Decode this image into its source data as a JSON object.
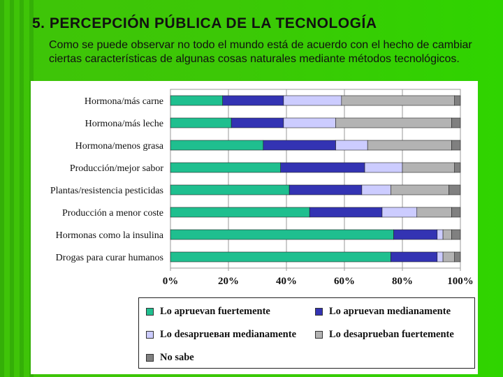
{
  "slide": {
    "title": "5. PERCEPCIÓN PÚBLICA DE LA TECNOLOGÍA",
    "subtitle": "Como se puede observar no todo el mundo está de acuerdo con el hecho de cambiar ciertas características de algunas cosas naturales mediante métodos tecnológicos."
  },
  "chart_data": {
    "type": "bar",
    "orientation": "horizontal",
    "stacked": "percent",
    "categories": [
      "Hormona/más carne",
      "Hormona/más leche",
      "Hormona/menos grasa",
      "Producción/mejor sabor",
      "Plantas/resistencia pesticidas",
      "Producción a menor coste",
      "Hormonas como la insulina",
      "Drogas para curar humanos"
    ],
    "series": [
      {
        "name": "Lo apruevan fuertemente",
        "color": "#1fbf8f",
        "values": [
          18,
          21,
          32,
          38,
          41,
          48,
          77,
          76
        ]
      },
      {
        "name": "Lo apruevan medianamente",
        "color": "#3333b3",
        "values": [
          21,
          18,
          25,
          29,
          25,
          25,
          15,
          16
        ]
      },
      {
        "name": "Lo desaprueван medianamente",
        "color": "#ccccff",
        "values": [
          20,
          18,
          11,
          13,
          10,
          12,
          2,
          2
        ]
      },
      {
        "name": "Lo desaprueban fuertemente",
        "color": "#b3b3b3",
        "values": [
          39,
          40,
          29,
          18,
          20,
          12,
          3,
          4
        ]
      },
      {
        "name": "No sabe",
        "color": "#808080",
        "values": [
          2,
          3,
          3,
          2,
          4,
          3,
          3,
          2
        ]
      }
    ],
    "xticks": [
      "0%",
      "20%",
      "40%",
      "60%",
      "80%",
      "100%"
    ],
    "xlim": [
      0,
      100
    ],
    "grid": "vertical",
    "legend_position": "bottom"
  }
}
